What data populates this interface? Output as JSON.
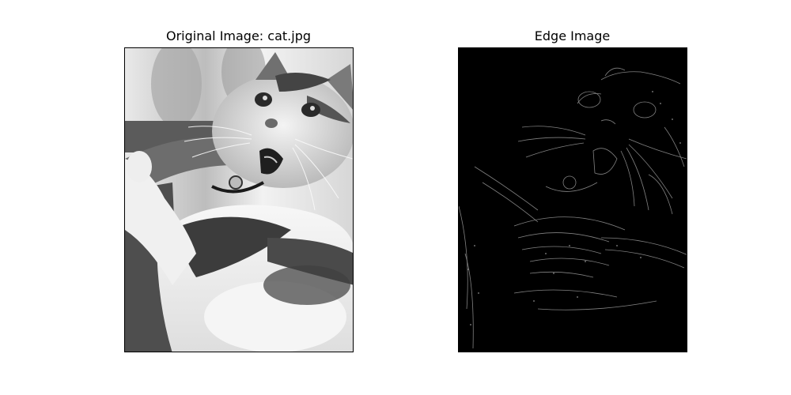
{
  "figure": {
    "left_panel": {
      "title": "Original Image: cat.jpg",
      "image_description": "grayscale photo of a tabby-and-white cat with mouth open"
    },
    "right_panel": {
      "title": "Edge Image",
      "image_description": "black background with thin grey edge lines tracing the cat"
    }
  },
  "colors": {
    "figure_background": "#ffffff",
    "frame_border": "#000000",
    "edge_background": "#000000",
    "edge_lines": "#8a8a8a"
  }
}
